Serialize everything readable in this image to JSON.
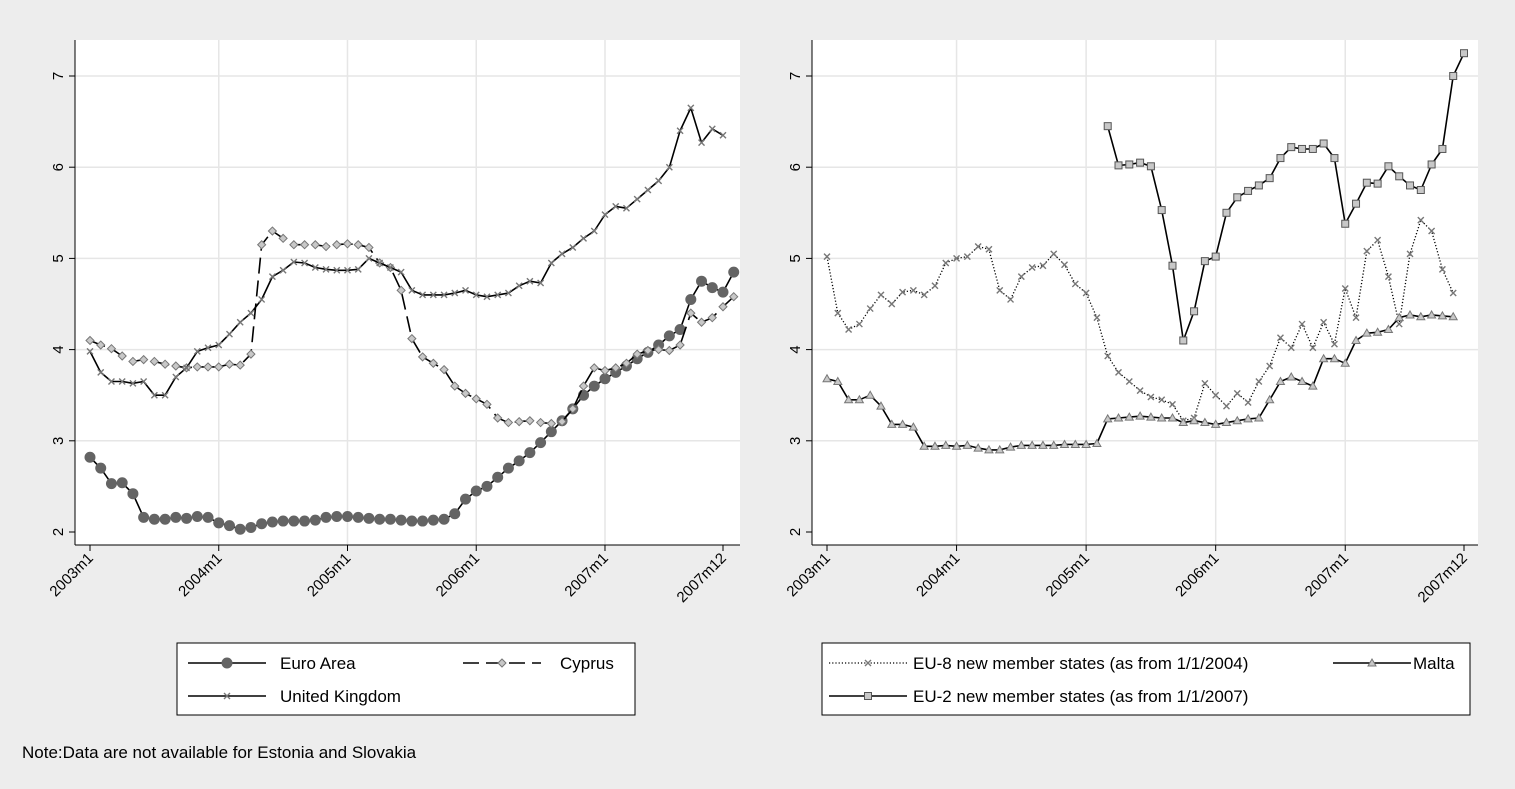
{
  "note": "Note:Data are not available for Estonia and Slovakia",
  "colors": {
    "background": "#ededed",
    "plot": "#ffffff",
    "grid": "#e6e6e6",
    "line": "#000000",
    "marker_dark": "#646464",
    "marker_light": "#c8c8c8"
  },
  "chart_data": [
    {
      "type": "line",
      "ylim": [
        2,
        7
      ],
      "yticks": [
        "2",
        "3",
        "4",
        "5",
        "6",
        "7"
      ],
      "xlim": [
        0,
        59
      ],
      "xticks": [
        {
          "pos": 0,
          "label": "2003m1"
        },
        {
          "pos": 12,
          "label": "2004m1"
        },
        {
          "pos": 24,
          "label": "2005m1"
        },
        {
          "pos": 36,
          "label": "2006m1"
        },
        {
          "pos": 48,
          "label": "2007m1"
        },
        {
          "pos": 59,
          "label": "2007m12"
        }
      ],
      "grid": true,
      "legend": "bottom",
      "series": [
        {
          "name": "Euro Area",
          "style": "solid",
          "marker": "circle",
          "values": [
            2.82,
            2.7,
            2.53,
            2.54,
            2.42,
            2.16,
            2.14,
            2.14,
            2.16,
            2.15,
            2.17,
            2.16,
            2.1,
            2.07,
            2.03,
            2.05,
            2.09,
            2.11,
            2.12,
            2.12,
            2.12,
            2.13,
            2.16,
            2.17,
            2.17,
            2.16,
            2.15,
            2.14,
            2.14,
            2.13,
            2.12,
            2.12,
            2.13,
            2.14,
            2.2,
            2.36,
            2.45,
            2.5,
            2.6,
            2.7,
            2.78,
            2.87,
            2.98,
            3.1,
            3.22,
            3.35,
            3.5,
            3.6,
            3.68,
            3.75,
            3.82,
            3.9,
            3.97,
            4.05,
            4.15,
            4.22,
            4.55,
            4.75,
            4.68,
            4.63,
            4.85
          ]
        },
        {
          "name": "Cyprus",
          "style": "dash",
          "marker": "diamond",
          "values": [
            4.1,
            4.05,
            4.01,
            3.93,
            3.87,
            3.89,
            3.87,
            3.84,
            3.82,
            3.8,
            3.81,
            3.81,
            3.81,
            3.84,
            3.83,
            3.95,
            5.15,
            5.3,
            5.22,
            5.15,
            5.15,
            5.15,
            5.13,
            5.15,
            5.16,
            5.15,
            5.12,
            4.95,
            4.9,
            4.65,
            4.12,
            3.92,
            3.85,
            3.78,
            3.6,
            3.52,
            3.46,
            3.4,
            3.25,
            3.2,
            3.21,
            3.22,
            3.2,
            3.19,
            3.21,
            3.35,
            3.6,
            3.8,
            3.77,
            3.8,
            3.85,
            3.95,
            3.99,
            4.0,
            3.99,
            4.05,
            4.4,
            4.3,
            4.35,
            4.47,
            4.58
          ]
        },
        {
          "name": "United Kingdom",
          "style": "solid",
          "marker": "x",
          "values": [
            3.98,
            3.75,
            3.65,
            3.65,
            3.63,
            3.65,
            3.5,
            3.5,
            3.7,
            3.8,
            3.98,
            4.02,
            4.05,
            4.17,
            4.3,
            4.4,
            4.55,
            4.8,
            4.87,
            4.96,
            4.95,
            4.9,
            4.88,
            4.87,
            4.87,
            4.88,
            5.0,
            4.95,
            4.9,
            4.85,
            4.65,
            4.6,
            4.6,
            4.6,
            4.62,
            4.65,
            4.6,
            4.58,
            4.6,
            4.62,
            4.7,
            4.75,
            4.73,
            4.95,
            5.05,
            5.12,
            5.22,
            5.3,
            5.48,
            5.57,
            5.55,
            5.65,
            5.75,
            5.85,
            6.0,
            6.4,
            6.65,
            6.27,
            6.42,
            6.35
          ]
        }
      ]
    },
    {
      "type": "line",
      "ylim": [
        2,
        7
      ],
      "yticks": [
        "2",
        "3",
        "4",
        "5",
        "6",
        "7"
      ],
      "xlim": [
        0,
        59
      ],
      "xticks": [
        {
          "pos": 0,
          "label": "2003m1"
        },
        {
          "pos": 12,
          "label": "2004m1"
        },
        {
          "pos": 24,
          "label": "2005m1"
        },
        {
          "pos": 36,
          "label": "2006m1"
        },
        {
          "pos": 48,
          "label": "2007m1"
        },
        {
          "pos": 59,
          "label": "2007m12"
        }
      ],
      "grid": true,
      "legend": "bottom",
      "series": [
        {
          "name": "EU-8 new member states (as from 1/1/2004)",
          "style": "dot",
          "marker": "x",
          "values": [
            5.02,
            4.4,
            4.22,
            4.28,
            4.45,
            4.6,
            4.5,
            4.63,
            4.65,
            4.6,
            4.7,
            4.95,
            5.0,
            5.02,
            5.13,
            5.1,
            4.65,
            4.55,
            4.8,
            4.9,
            4.92,
            5.05,
            4.93,
            4.72,
            4.62,
            4.35,
            3.93,
            3.75,
            3.65,
            3.55,
            3.48,
            3.45,
            3.4,
            3.22,
            3.25,
            3.63,
            3.5,
            3.38,
            3.52,
            3.42,
            3.65,
            3.82,
            4.13,
            4.02,
            4.28,
            4.02,
            4.3,
            4.06,
            4.67,
            4.35,
            5.08,
            5.2,
            4.8,
            4.28,
            5.05,
            5.42,
            5.3,
            4.88,
            4.62
          ]
        },
        {
          "name": "EU-2 new member states (as from 1/1/2007)",
          "style": "solid",
          "marker": "square",
          "start": 26,
          "values": [
            6.45,
            6.02,
            6.03,
            6.05,
            6.01,
            5.53,
            4.92,
            4.1,
            4.42,
            4.97,
            5.02,
            5.5,
            5.67,
            5.74,
            5.8,
            5.88,
            6.1,
            6.22,
            6.2,
            6.2,
            6.26,
            6.1,
            5.38,
            5.6,
            5.83,
            5.82,
            6.01,
            5.9,
            5.8,
            5.75,
            6.03,
            6.2,
            7.0,
            7.25
          ]
        },
        {
          "name": "Malta",
          "style": "solid",
          "marker": "triangle",
          "values": [
            3.68,
            3.65,
            3.45,
            3.45,
            3.5,
            3.38,
            3.18,
            3.18,
            3.15,
            2.94,
            2.94,
            2.95,
            2.94,
            2.95,
            2.92,
            2.9,
            2.9,
            2.93,
            2.95,
            2.95,
            2.95,
            2.95,
            2.96,
            2.96,
            2.96,
            2.97,
            3.24,
            3.25,
            3.26,
            3.27,
            3.26,
            3.25,
            3.25,
            3.2,
            3.22,
            3.2,
            3.18,
            3.2,
            3.22,
            3.24,
            3.25,
            3.45,
            3.65,
            3.7,
            3.65,
            3.6,
            3.9,
            3.9,
            3.85,
            4.1,
            4.18,
            4.19,
            4.22,
            4.35,
            4.38,
            4.36,
            4.38,
            4.37,
            4.36
          ]
        }
      ]
    }
  ]
}
